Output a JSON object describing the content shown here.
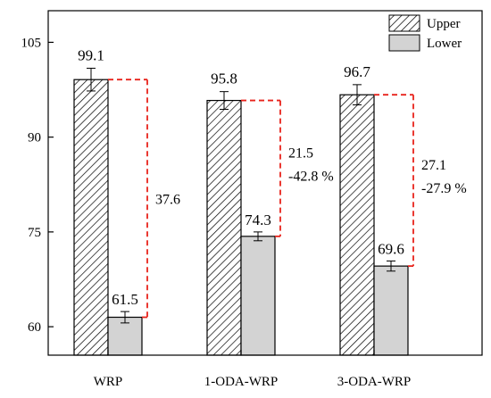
{
  "chart_data": {
    "type": "bar",
    "categories": [
      "WRP",
      "1-ODA-WRP",
      "3-ODA-WRP"
    ],
    "series": [
      {
        "name": "Upper",
        "values": [
          99.1,
          95.8,
          96.7
        ],
        "errors": [
          1.8,
          1.4,
          1.6
        ],
        "labels": [
          "99.1",
          "95.8",
          "96.7"
        ],
        "pattern": "diagonal-hatch"
      },
      {
        "name": "Lower",
        "values": [
          61.5,
          74.3,
          69.6
        ],
        "errors": [
          0.9,
          0.7,
          0.8
        ],
        "labels": [
          "61.5",
          "74.3",
          "69.6"
        ],
        "color": "#d3d3d3"
      }
    ],
    "differences": [
      {
        "value": "37.6",
        "percent": ""
      },
      {
        "value": "21.5",
        "percent": "-42.8 %"
      },
      {
        "value": "27.1",
        "percent": "-27.9 %"
      }
    ],
    "y_ticks": [
      "60",
      "75",
      "90",
      "105"
    ],
    "y_tick_values": [
      60,
      75,
      90,
      105
    ],
    "ylim": [
      55.5,
      110
    ],
    "legend": [
      "Upper",
      "Lower"
    ],
    "legend_position": "top-right",
    "grid": false,
    "colors": {
      "difference_line": "#e8231b",
      "error_bar": "#000000",
      "lower_fill": "#d3d3d3"
    }
  }
}
